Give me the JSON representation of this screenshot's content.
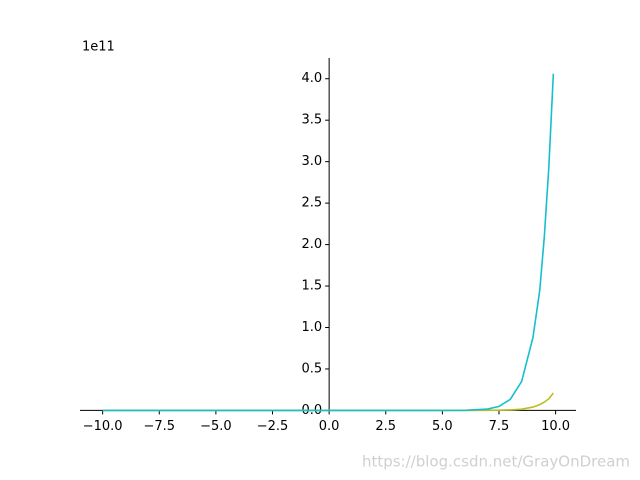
{
  "chart_data": {
    "type": "line",
    "offset_label": "1e11",
    "watermark": "https://blog.csdn.net/GrayOnDream",
    "x": [
      -10,
      -8,
      -6,
      -4,
      -2,
      0,
      2,
      4,
      6,
      7,
      7.5,
      8,
      8.5,
      9,
      9.3,
      9.5,
      9.7,
      9.9
    ],
    "series": [
      {
        "color": "#bcbd22",
        "values": [
          0,
          0,
          0,
          0,
          0,
          0,
          0,
          0,
          0,
          0.001,
          0.003,
          0.006,
          0.015,
          0.04,
          0.07,
          0.1,
          0.14,
          0.21
        ]
      },
      {
        "color": "#17becf",
        "values": [
          0,
          0,
          0,
          0,
          0,
          0,
          0,
          0,
          0.001,
          0.016,
          0.048,
          0.134,
          0.35,
          0.88,
          1.45,
          2.09,
          2.93,
          4.06
        ]
      }
    ],
    "xlim": [
      -11.0,
      10.9
    ],
    "ylim": [
      -0.2,
      4.25
    ],
    "xticks": [
      {
        "value": -10,
        "label": "−10.0"
      },
      {
        "value": -7.5,
        "label": "−7.5"
      },
      {
        "value": -5,
        "label": "−5.0"
      },
      {
        "value": -2.5,
        "label": "−2.5"
      },
      {
        "value": 0,
        "label": "0.0"
      },
      2.5,
      {
        "value": 5,
        "label": "5.0"
      },
      7.5,
      {
        "value": 10,
        "label": "10.0"
      }
    ],
    "yticks": [
      {
        "value": 0,
        "label": "0.0"
      },
      0.5,
      {
        "value": 1,
        "label": "1.0"
      },
      1.5,
      {
        "value": 2,
        "label": "2.0"
      },
      2.5,
      {
        "value": 3,
        "label": "3.0"
      },
      3.5,
      {
        "value": 4,
        "label": "4.0"
      }
    ]
  }
}
